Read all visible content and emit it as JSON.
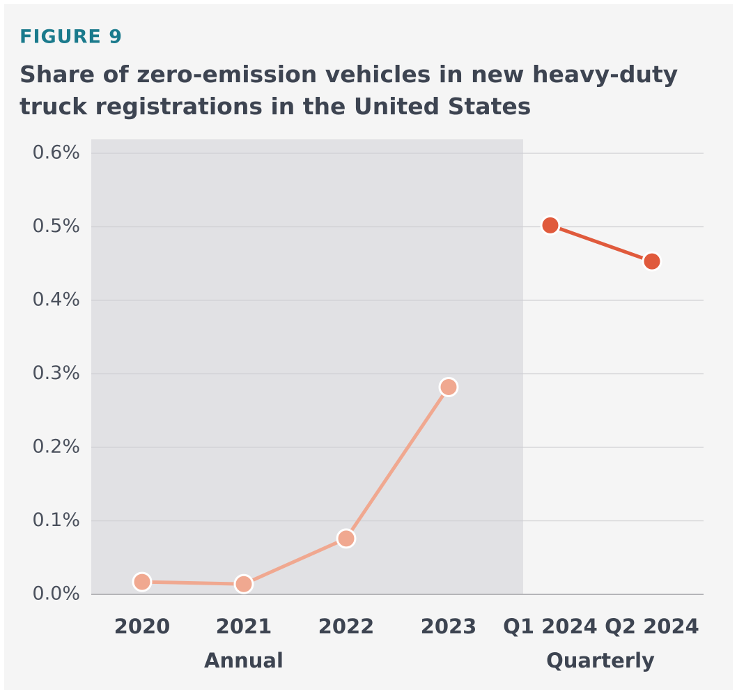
{
  "chart_data": {
    "type": "line",
    "label": "FIGURE 9",
    "title": "Share of zero-emission vehicles in new heavy-duty truck registrations in the United States",
    "categories": [
      "2020",
      "2021",
      "2022",
      "2023",
      "Q1 2024",
      "Q2 2024"
    ],
    "series": [
      {
        "name": "Annual",
        "color": "#f0a890",
        "values": [
          0.017,
          0.014,
          0.076,
          0.282,
          null,
          null
        ]
      },
      {
        "name": "Quarterly",
        "color": "#e05a3c",
        "values": [
          null,
          null,
          null,
          null,
          0.502,
          0.453
        ]
      }
    ],
    "ylim": [
      0,
      0.6
    ],
    "yticks": [
      {
        "value": 0,
        "label": "0.0%"
      },
      {
        "value": 0.1,
        "label": "0.1%"
      },
      {
        "value": 0.2,
        "label": "0.2%"
      },
      {
        "value": 0.3,
        "label": "0.3%"
      },
      {
        "value": 0.4,
        "label": "0.4%"
      },
      {
        "value": 0.5,
        "label": "0.5%"
      },
      {
        "value": 0.6,
        "label": "0.6%"
      }
    ],
    "grid": true
  }
}
